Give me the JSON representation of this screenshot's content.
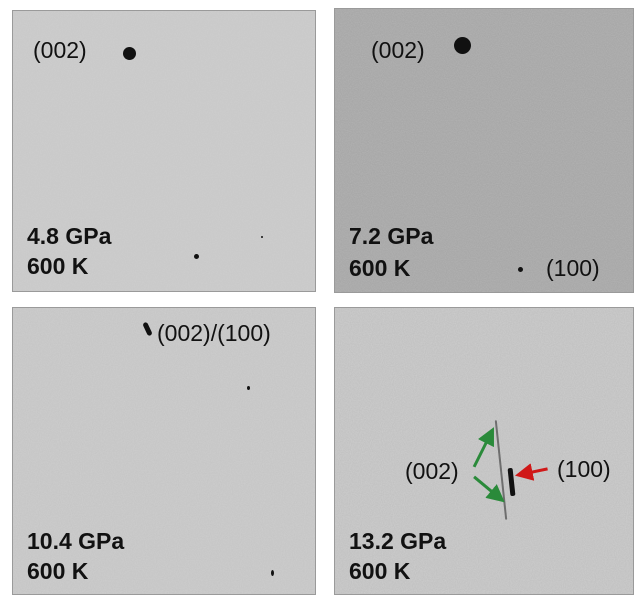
{
  "panels": [
    {
      "id": "p1",
      "pressure": "4.8 GPa",
      "temperature": "600 K",
      "labels": [
        "(002)"
      ]
    },
    {
      "id": "p2",
      "pressure": "7.2 GPa",
      "temperature": "600 K",
      "labels": [
        "(002)",
        "(100)"
      ]
    },
    {
      "id": "p3",
      "pressure": "10.4 GPa",
      "temperature": "600 K",
      "labels": [
        "(002)/(100)"
      ]
    },
    {
      "id": "p4",
      "pressure": "13.2 GPa",
      "temperature": "600 K",
      "labels": [
        "(002)",
        "(100)"
      ]
    }
  ],
  "colors": {
    "arrow_green": "#2a8a3a",
    "arrow_red": "#d01818",
    "background_gray": "#b4b4b4"
  }
}
